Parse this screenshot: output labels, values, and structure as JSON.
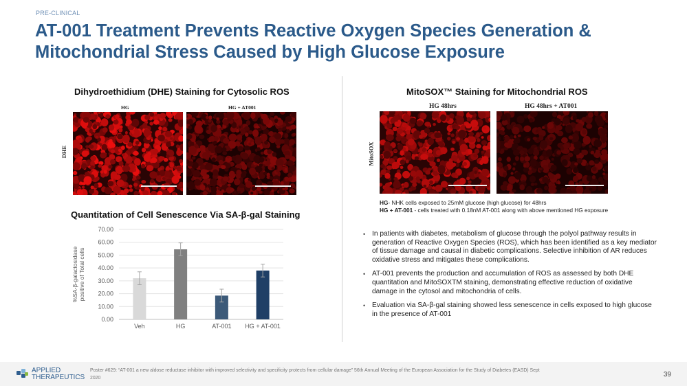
{
  "header": {
    "eyebrow": "PRE-CLINICAL",
    "title": "AT-001 Treatment Prevents Reactive Oxygen Species Generation & Mitochondrial Stress Caused by High Glucose Exposure"
  },
  "dhe": {
    "title": "Dihydroethidium (DHE) Staining for Cytosolic ROS",
    "label_left": "HG",
    "label_right": "HG + AT001",
    "row_label": "DHE"
  },
  "mitosox": {
    "title": "MitoSOX™ Staining for Mitochondrial ROS",
    "label_left": "HG 48hrs",
    "label_right": "HG 48hrs + AT001",
    "row_label": "MitoSOX",
    "legend": {
      "hg_key": "HG",
      "hg_text": "- NHK cells exposed to 25mM glucose (high glucose) for 48hrs",
      "at_key": "HG + AT-001",
      "at_text": " - cells treated with 0.18nM AT-001 along with above mentioned HG exposure"
    }
  },
  "senescence": {
    "title": "Quantitation of Cell Senescence Via SA-β-gal Staining"
  },
  "chart_data": {
    "type": "bar",
    "title": "Quantitation of Cell Senescence Via SA-β-gal Staining",
    "categories": [
      "Veh",
      "HG",
      "AT-001",
      "HG + AT-001"
    ],
    "values": [
      32,
      54.5,
      18.5,
      38
    ],
    "errors": [
      5,
      5,
      5,
      5
    ],
    "colors": [
      "#d9d9d9",
      "#808080",
      "#3c5a79",
      "#1f3f66"
    ],
    "ylabel_line1": "%SA-β-galactosidase",
    "ylabel_line2": "positive of Total cells",
    "ylim": [
      0,
      70
    ],
    "yticks": [
      "0.00",
      "10.00",
      "20.00",
      "30.00",
      "40.00",
      "50.00",
      "60.00",
      "70.00"
    ],
    "grid": true
  },
  "bullets": [
    "In patients with diabetes, metabolism of glucose through the polyol pathway results in generation of Reactive Oxygen Species (ROS), which has been identified as a key mediator of tissue damage and causal in diabetic complications. Selective inhibition of AR reduces oxidative stress and mitigates these complications.",
    "AT-001 prevents the production and accumulation of ROS as assessed by both DHE quantitation and MitoSOXTM staining, demonstrating effective reduction of oxidative damage in the cytosol and mitochondria of cells.",
    "Evaluation via SA-β-gal staining showed less senescence in cells exposed to high glucose in the presence of AT-001"
  ],
  "footer": {
    "logo_line1": "APPLIED",
    "logo_line2": "THERAPEUTICS",
    "citation": "Poster #629: “AT-001 a new aldose reductase inhibitor with improved selectivity and specificity protects from cellular damage” 56th Annual Meeting of the European Association for the Study of Diabetes (EASD) Sept 2020",
    "page_number": "39"
  },
  "colors": {
    "title": "#2b5a8a",
    "eyebrow": "#6e8fb5",
    "cell_bright": "#e01010",
    "cell_dim": "#7a0a0a"
  }
}
